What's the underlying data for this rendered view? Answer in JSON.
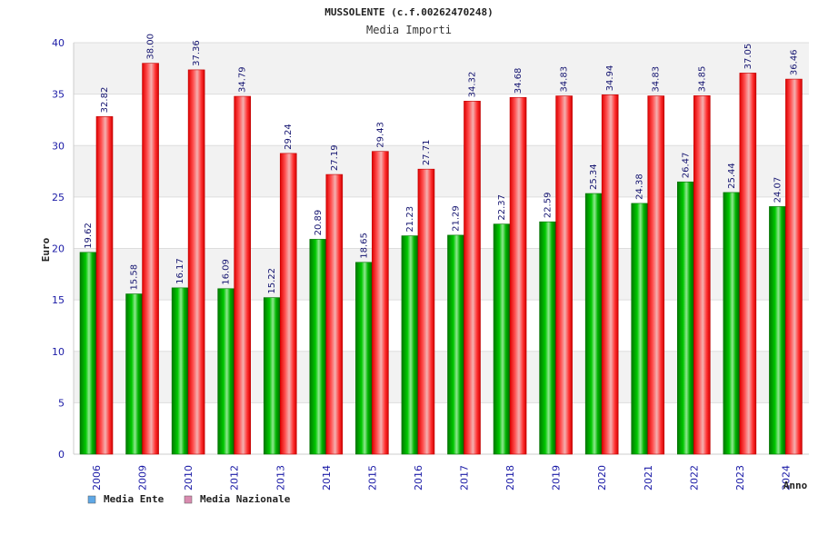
{
  "chart_data": {
    "type": "bar",
    "title": "MUSSOLENTE (c.f.00262470248)",
    "subtitle": "Media Importi",
    "xlabel": "Anno",
    "ylabel": "Euro",
    "ylim": [
      0,
      40
    ],
    "yticks": [
      0,
      5,
      10,
      15,
      20,
      25,
      30,
      35,
      40
    ],
    "grid": true,
    "legend_position": "bottom-left",
    "categories": [
      "2006",
      "2009",
      "2010",
      "2012",
      "2013",
      "2014",
      "2015",
      "2016",
      "2017",
      "2018",
      "2019",
      "2020",
      "2021",
      "2022",
      "2023",
      "2024"
    ],
    "series": [
      {
        "name": "Media Ente",
        "color": "#00aa00",
        "legend_color": "#5fa8e6",
        "values": [
          19.62,
          15.58,
          16.17,
          16.09,
          15.22,
          20.89,
          18.65,
          21.23,
          21.29,
          22.37,
          22.59,
          25.34,
          24.38,
          26.47,
          25.44,
          24.07
        ],
        "labels": [
          "19.62",
          "15.58",
          "16.17",
          "16.09",
          "15.22",
          "20.89",
          "18.65",
          "21.23",
          "21.29",
          "22.37",
          "22.59",
          "25.34",
          "24.38",
          "26.47",
          "25.44",
          "24.07"
        ]
      },
      {
        "name": "Media Nazionale",
        "color": "#ee1111",
        "legend_color": "#d98bb0",
        "values": [
          32.82,
          38.0,
          37.36,
          34.79,
          29.24,
          27.19,
          29.43,
          27.71,
          34.32,
          34.68,
          34.83,
          34.94,
          34.83,
          34.85,
          37.05,
          36.46
        ],
        "labels": [
          "32.82",
          "38.00",
          "37.36",
          "34.79",
          "29.24",
          "27.19",
          "29.43",
          "27.71",
          "34.32",
          "34.68",
          "34.83",
          "34.94",
          "34.83",
          "34.85",
          "37.05",
          "36.46"
        ]
      }
    ]
  }
}
